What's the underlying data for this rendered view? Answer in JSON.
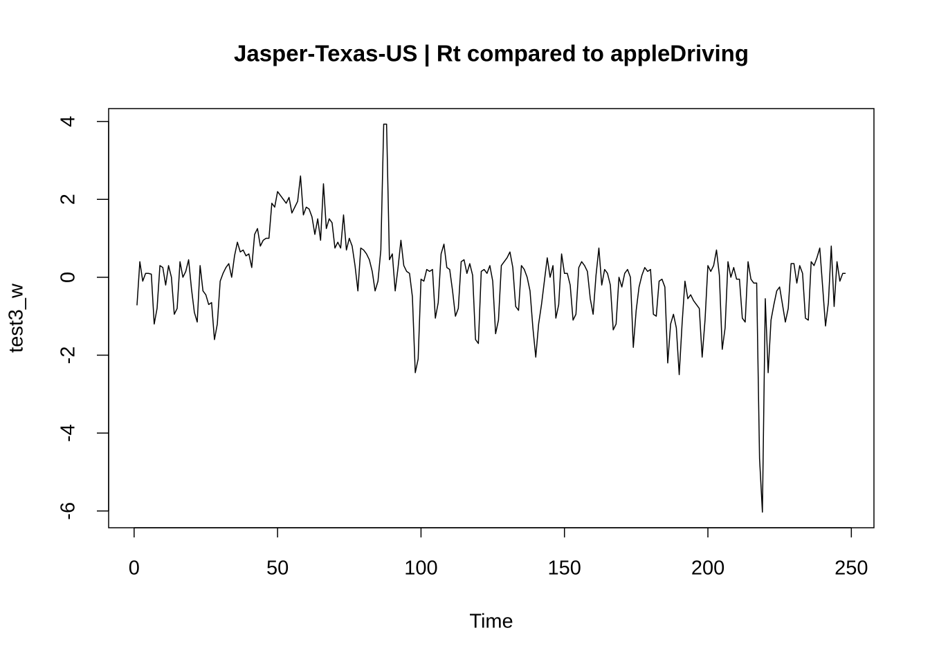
{
  "chart_data": {
    "type": "line",
    "title": "Jasper-Texas-US | Rt compared to appleDriving",
    "xlabel": "Time",
    "ylabel": "test3_w",
    "x": [
      1,
      2,
      3,
      4,
      5,
      6,
      7,
      8,
      9,
      10,
      11,
      12,
      13,
      14,
      15,
      16,
      17,
      18,
      19,
      20,
      21,
      22,
      23,
      24,
      25,
      26,
      27,
      28,
      29,
      30,
      31,
      32,
      33,
      34,
      35,
      36,
      37,
      38,
      39,
      40,
      41,
      42,
      43,
      44,
      45,
      46,
      47,
      48,
      49,
      50,
      51,
      52,
      53,
      54,
      55,
      56,
      57,
      58,
      59,
      60,
      61,
      62,
      63,
      64,
      65,
      66,
      67,
      68,
      69,
      70,
      71,
      72,
      73,
      74,
      75,
      76,
      77,
      78,
      79,
      80,
      81,
      82,
      83,
      84,
      85,
      86,
      87,
      88,
      89,
      90,
      91,
      92,
      93,
      94,
      95,
      96,
      97,
      98,
      99,
      100,
      101,
      102,
      103,
      104,
      105,
      106,
      107,
      108,
      109,
      110,
      111,
      112,
      113,
      114,
      115,
      116,
      117,
      118,
      119,
      120,
      121,
      122,
      123,
      124,
      125,
      126,
      127,
      128,
      129,
      130,
      131,
      132,
      133,
      134,
      135,
      136,
      137,
      138,
      139,
      140,
      141,
      142,
      143,
      144,
      145,
      146,
      147,
      148,
      149,
      150,
      151,
      152,
      153,
      154,
      155,
      156,
      157,
      158,
      159,
      160,
      161,
      162,
      163,
      164,
      165,
      166,
      167,
      168,
      169,
      170,
      171,
      172,
      173,
      174,
      175,
      176,
      177,
      178,
      179,
      180,
      181,
      182,
      183,
      184,
      185,
      186,
      187,
      188,
      189,
      190,
      191,
      192,
      193,
      194,
      195,
      196,
      197,
      198,
      199,
      200,
      201,
      202,
      203,
      204,
      205,
      206,
      207,
      208,
      209,
      210,
      211,
      212,
      213,
      214,
      215,
      216,
      217,
      218,
      219,
      220,
      221,
      222,
      223,
      224,
      225,
      226,
      227,
      228,
      229,
      230,
      231,
      232,
      233,
      234,
      235,
      236,
      237,
      238,
      239,
      240,
      241,
      242,
      243,
      244,
      245,
      246,
      247,
      248
    ],
    "series": [
      {
        "name": "test3_w",
        "color": "#000000",
        "values": [
          -0.72,
          0.4,
          -0.1,
          0.1,
          0.1,
          0.08,
          -1.2,
          -0.8,
          0.3,
          0.25,
          -0.2,
          0.3,
          0,
          -0.95,
          -0.8,
          0.4,
          0,
          0.15,
          0.45,
          -0.3,
          -0.9,
          -1.15,
          0.3,
          -0.35,
          -0.45,
          -0.7,
          -0.65,
          -1.6,
          -1.2,
          -0.1,
          0.1,
          0.25,
          0.35,
          0.0,
          0.55,
          0.9,
          0.65,
          0.7,
          0.55,
          0.6,
          0.25,
          1.1,
          1.25,
          0.8,
          0.95,
          1.0,
          1.0,
          1.9,
          1.8,
          2.2,
          2.1,
          2.0,
          1.9,
          2.05,
          1.65,
          1.8,
          1.95,
          2.6,
          1.6,
          1.8,
          1.75,
          1.55,
          1.1,
          1.5,
          0.95,
          2.4,
          1.25,
          1.5,
          1.4,
          0.75,
          0.9,
          0.75,
          1.6,
          0.7,
          1.0,
          0.8,
          0.3,
          -0.35,
          0.75,
          0.7,
          0.6,
          0.45,
          0.15,
          -0.35,
          -0.1,
          0.7,
          3.93,
          3.93,
          0.45,
          0.6,
          -0.35,
          0.25,
          0.95,
          0.3,
          0.15,
          0.1,
          -0.5,
          -2.45,
          -2.1,
          -0.05,
          -0.1,
          0.2,
          0.15,
          0.2,
          -1.05,
          -0.65,
          0.6,
          0.85,
          0.25,
          0.2,
          -0.35,
          -1.0,
          -0.8,
          0.4,
          0.45,
          0.1,
          0.35,
          0.05,
          -1.6,
          -1.7,
          0.15,
          0.2,
          0.1,
          0.3,
          -0.1,
          -1.45,
          -1.1,
          0.3,
          0.4,
          0.5,
          0.65,
          0.25,
          -0.75,
          -0.85,
          0.3,
          0.2,
          0.0,
          -0.35,
          -1.3,
          -2.05,
          -1.2,
          -0.7,
          -0.1,
          0.5,
          0.0,
          0.3,
          -1.05,
          -0.7,
          0.6,
          0.1,
          0.1,
          -0.2,
          -1.1,
          -0.95,
          0.25,
          0.4,
          0.3,
          0.15,
          -0.55,
          -0.95,
          0.05,
          0.75,
          -0.2,
          0.2,
          0.1,
          -0.2,
          -1.35,
          -1.2,
          0.0,
          -0.25,
          0.1,
          0.2,
          0.0,
          -1.8,
          -0.85,
          -0.25,
          0.05,
          0.25,
          0.15,
          0.2,
          -0.95,
          -1.0,
          -0.1,
          -0.05,
          -0.25,
          -2.2,
          -1.2,
          -0.95,
          -1.3,
          -2.5,
          -1.2,
          -0.1,
          -0.55,
          -0.45,
          -0.6,
          -0.7,
          -0.8,
          -2.05,
          -1.1,
          0.3,
          0.15,
          0.3,
          0.7,
          0.05,
          -1.85,
          -1.3,
          0.4,
          0.0,
          0.25,
          -0.05,
          -0.05,
          -1.05,
          -1.15,
          0.4,
          -0.05,
          -0.15,
          -0.15,
          -4.65,
          -6.03,
          -0.55,
          -2.45,
          -1.1,
          -0.7,
          -0.35,
          -0.25,
          -0.7,
          -1.15,
          -0.8,
          0.35,
          0.35,
          -0.15,
          0.3,
          0.1,
          -1.05,
          -1.1,
          0.4,
          0.3,
          0.5,
          0.75,
          -0.25,
          -1.25,
          -0.65,
          0.8,
          -0.75,
          0.4,
          -0.1,
          0.1,
          0.1
        ]
      }
    ],
    "xlim": [
      -8.88,
      257.88
    ],
    "xticks": [
      0,
      50,
      100,
      150,
      200,
      250
    ],
    "ylim": [
      -6.43,
      4.33
    ],
    "yticks": [
      -6,
      -4,
      -2,
      0,
      2,
      4
    ]
  }
}
